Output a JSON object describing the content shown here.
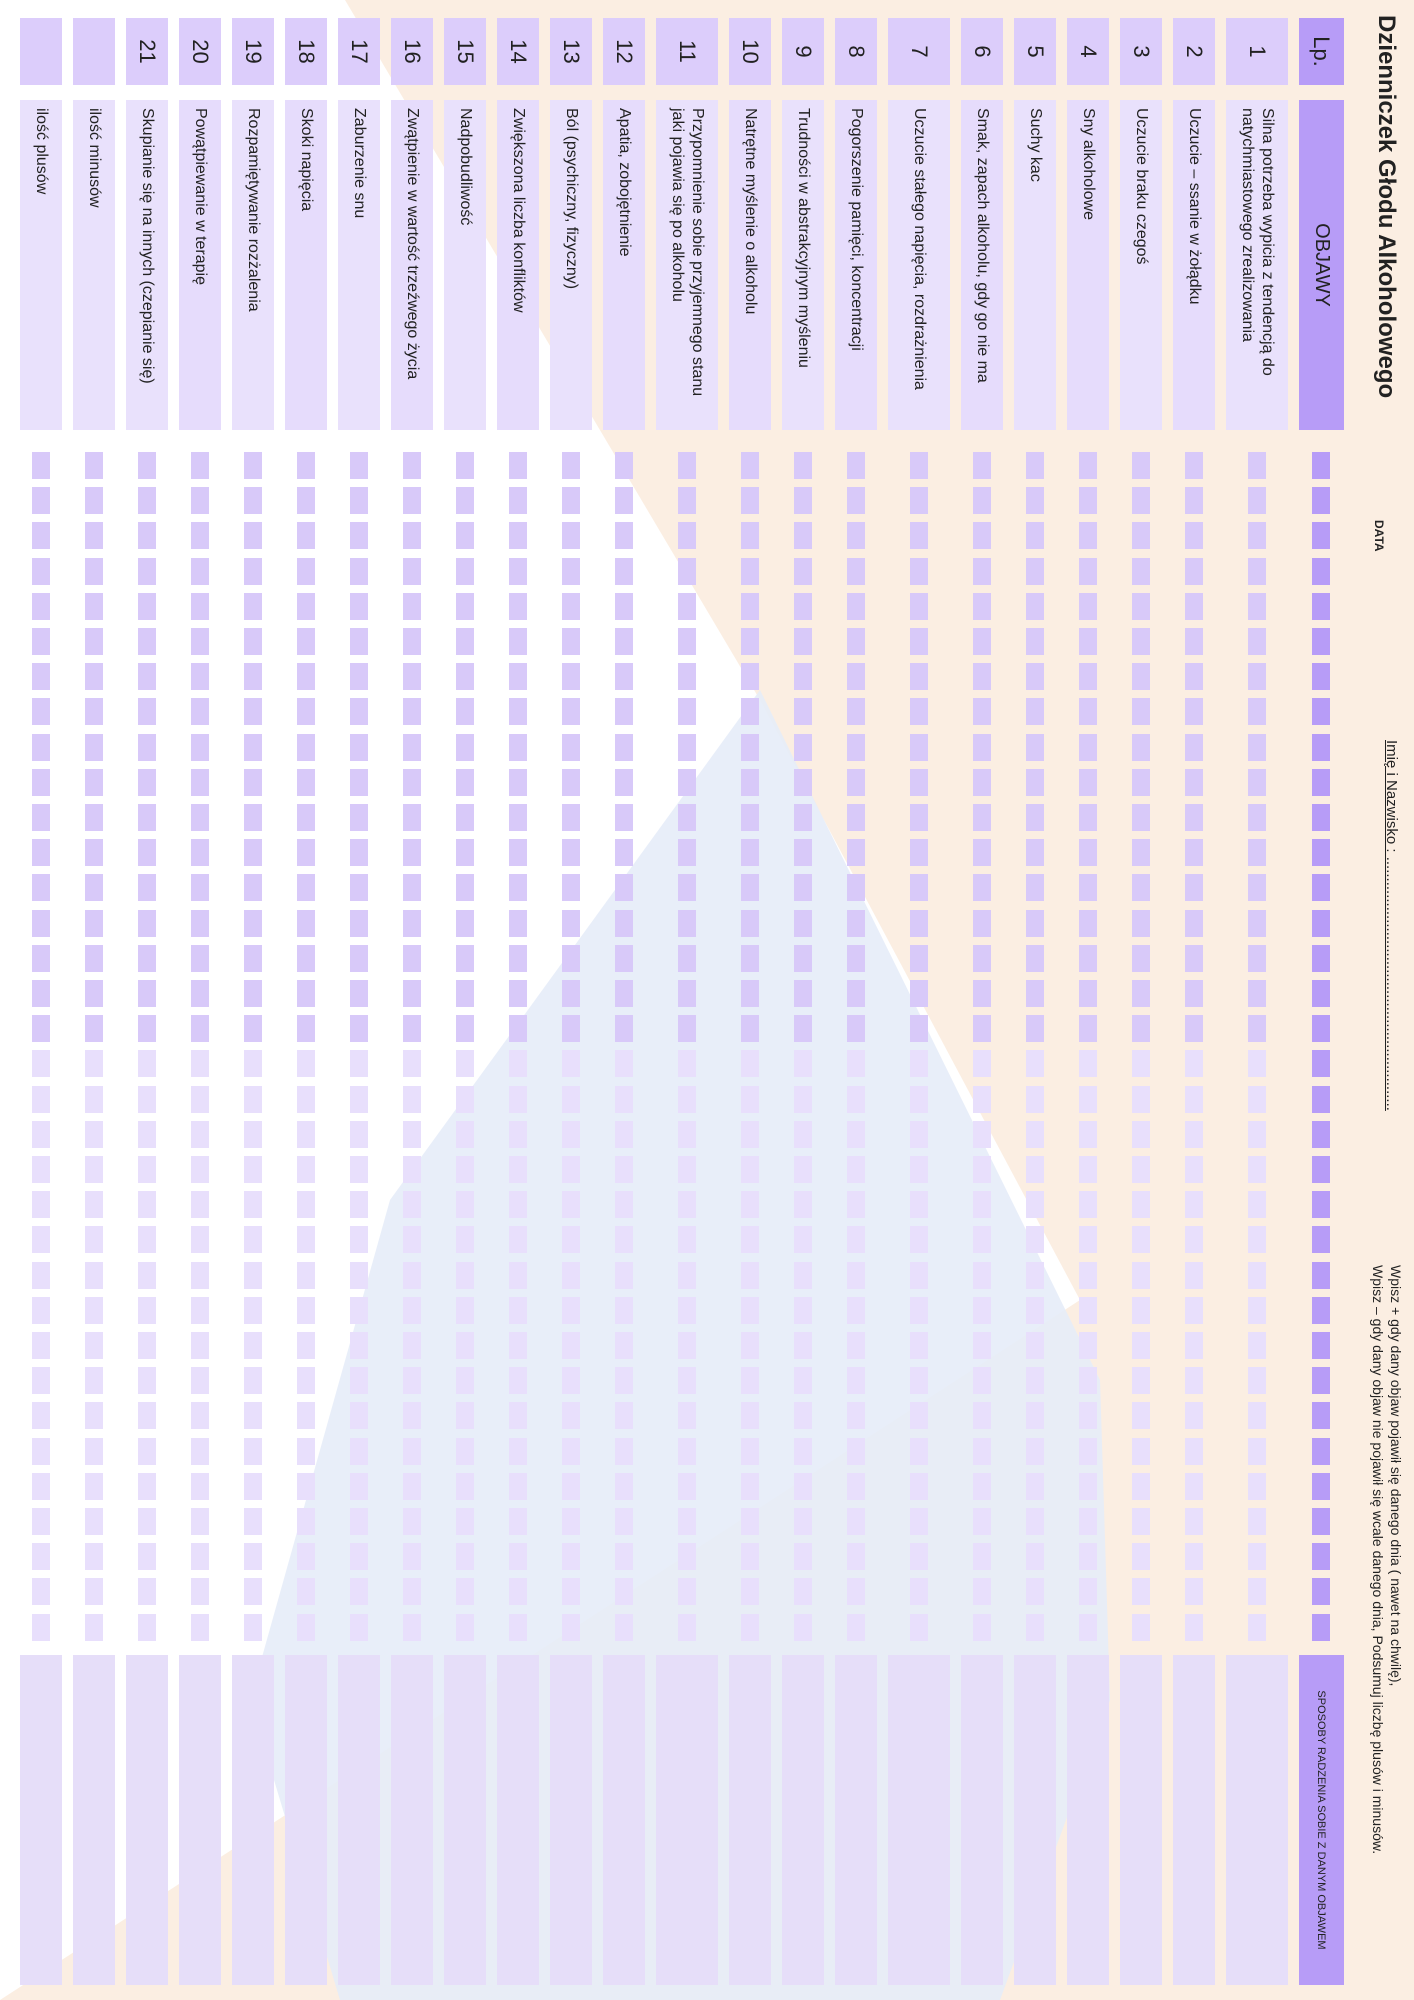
{
  "header": {
    "title": "Dzienniczek Głodu Alkoholowego",
    "name_label": "Imię i Nazwisko : .............................................................",
    "date_label": "DATA",
    "instructions": [
      "Wpisz + gdy dany objaw pojawił się danego dnia ( nawet na chwilę),",
      "Wpisz – gdy dany objaw nie pojawił się wcale danego dnia, Podsumuj liczbę plusów i minusów."
    ]
  },
  "table": {
    "header": {
      "lp": "Lp.",
      "symptoms": "OBJAWY",
      "coping": "SPOSOBY RADZENIA SOBIE Z DANYM OBJAWEM"
    },
    "rows": [
      {
        "number": "1",
        "symptom": "Silna potrzeba wypicia z tendencją do natychmiastowego zrealizowania"
      },
      {
        "number": "2",
        "symptom": "Uczucie – ssanie w żołądku"
      },
      {
        "number": "3",
        "symptom": "Uczucie braku czegoś"
      },
      {
        "number": "4",
        "symptom": "Sny alkoholowe"
      },
      {
        "number": "5",
        "symptom": "Suchy kac"
      },
      {
        "number": "6",
        "symptom": "Smak, zapach alkoholu, gdy go nie ma"
      },
      {
        "number": "7",
        "symptom": "Uczucie stałego napięcia, rozdrażnienia"
      },
      {
        "number": "8",
        "symptom": "Pogorszenie pamięci, koncentracji"
      },
      {
        "number": "9",
        "symptom": "Trudności w abstrakcyjnym myśleniu"
      },
      {
        "number": "10",
        "symptom": "Natrętne myślenie o alkoholu"
      },
      {
        "number": "11",
        "symptom": "Przypomnienie sobie przyjemnego stanu jaki pojawia się po alkoholu"
      },
      {
        "number": "12",
        "symptom": "Apatia, zobojętnienie"
      },
      {
        "number": "13",
        "symptom": "Ból (psychiczny, fizyczny)"
      },
      {
        "number": "14",
        "symptom": "Zwiększona liczba konfliktów"
      },
      {
        "number": "15",
        "symptom": "Nadpobudliwość"
      },
      {
        "number": "16",
        "symptom": "Zwątpienie w wartość trzeźwego życia"
      },
      {
        "number": "17",
        "symptom": "Zaburzenie snu"
      },
      {
        "number": "18",
        "symptom": "Skoki napięcia"
      },
      {
        "number": "19",
        "symptom": "Rozpamiętywanie rozżalenia"
      },
      {
        "number": "20",
        "symptom": "Powątpiewanie w terapię"
      },
      {
        "number": "21",
        "symptom": "Skupianie się na innych (czepianie się)"
      }
    ],
    "summary": [
      "ilość minusów",
      "ilość plusów"
    ]
  }
}
